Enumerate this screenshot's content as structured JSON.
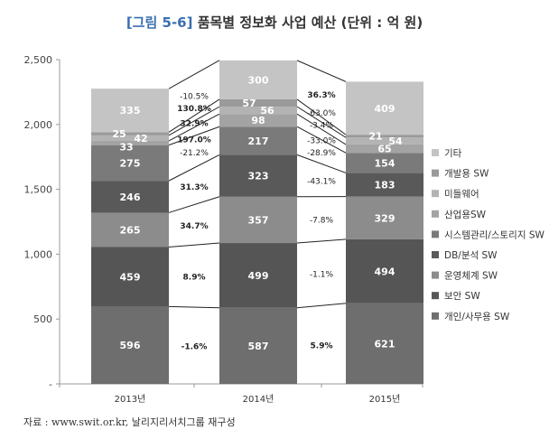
{
  "title_prefix": "[그림 5-6]",
  "title_main": "품목별 정보화 사업 예산 (단위 : 억 원)",
  "source": "자료 : www.swit.or.kr, 날리지리서치그룹 재구성",
  "colors": {
    "axis": "#999999",
    "connector": "#222222",
    "label_light": "#ffffff",
    "label_dark": "#222222"
  },
  "chart_data": {
    "type": "bar",
    "stacked": true,
    "categories": [
      "2013년",
      "2014년",
      "2015년"
    ],
    "ylim": [
      0,
      2500
    ],
    "yticks": [
      0,
      500,
      1000,
      1500,
      2000,
      2500
    ],
    "ytick_labels": [
      "-",
      "500",
      "1,000",
      "1,500",
      "2,000",
      "2,500"
    ],
    "grid": false,
    "legend_position": "right",
    "series": [
      {
        "name": "개인/사무용 SW",
        "values": [
          596,
          587,
          621
        ],
        "color": "#6e6e6e",
        "label_color": "#ffffff",
        "growth": [
          "-1.6%",
          "5.9%"
        ],
        "growth_bold": [
          true,
          true
        ]
      },
      {
        "name": "보안 SW",
        "values": [
          459,
          499,
          494
        ],
        "color": "#555555",
        "label_color": "#ffffff",
        "growth": [
          "8.9%",
          "-1.1%"
        ],
        "growth_bold": [
          true,
          false
        ]
      },
      {
        "name": "운영체계 SW",
        "values": [
          265,
          357,
          329
        ],
        "color": "#8c8c8c",
        "label_color": "#ffffff",
        "growth": [
          "34.7%",
          "-7.8%"
        ],
        "growth_bold": [
          true,
          false
        ]
      },
      {
        "name": "DB/분석 SW",
        "values": [
          246,
          323,
          183
        ],
        "color": "#595959",
        "label_color": "#ffffff",
        "growth": [
          "31.3%",
          "-43.1%"
        ],
        "growth_bold": [
          true,
          false
        ]
      },
      {
        "name": "시스템관리/스토리지 SW",
        "values": [
          275,
          217,
          154
        ],
        "color": "#7a7a7a",
        "label_color": "#ffffff",
        "growth": [
          "-21.2%",
          "-28.9%"
        ],
        "growth_bold": [
          false,
          false
        ]
      },
      {
        "name": "산업용SW",
        "values": [
          33,
          98,
          65
        ],
        "color": "#a3a3a3",
        "label_color": "#ffffff",
        "growth": [
          "197.0%",
          "-33.0%"
        ],
        "growth_bold": [
          true,
          false
        ]
      },
      {
        "name": "미들웨어",
        "values": [
          42,
          56,
          54
        ],
        "color": "#b3b3b3",
        "label_color": "#ffffff",
        "growth": [
          "32.9%",
          "-3.4%"
        ],
        "growth_bold": [
          true,
          false
        ]
      },
      {
        "name": "개발용 SW",
        "values": [
          25,
          57,
          21
        ],
        "color": "#9a9a9a",
        "label_color": "#ffffff",
        "growth": [
          "130.8%",
          "-63.0%"
        ],
        "growth_bold": [
          true,
          false
        ]
      },
      {
        "name": "기타",
        "values": [
          335,
          300,
          409
        ],
        "color": "#c4c4c4",
        "label_color": "#ffffff",
        "growth": [
          "-10.5%",
          "36.3%"
        ],
        "growth_bold": [
          false,
          true
        ]
      }
    ]
  }
}
